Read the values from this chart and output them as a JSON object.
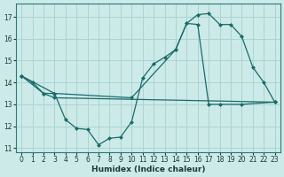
{
  "xlabel": "Humidex (Indice chaleur)",
  "bg_color": "#cceae8",
  "grid_color": "#aad4d2",
  "line_color": "#1a6b6b",
  "xlim": [
    -0.5,
    23.5
  ],
  "ylim": [
    10.8,
    17.6
  ],
  "xticks": [
    0,
    1,
    2,
    3,
    4,
    5,
    6,
    7,
    8,
    9,
    10,
    11,
    12,
    13,
    14,
    15,
    16,
    17,
    18,
    19,
    20,
    21,
    22,
    23
  ],
  "yticks": [
    11,
    12,
    13,
    14,
    15,
    16,
    17
  ],
  "line1_x": [
    0,
    1,
    2,
    3,
    4,
    5,
    6,
    7,
    8,
    9,
    10,
    11,
    12,
    13,
    14,
    15,
    16,
    17,
    18,
    19,
    20,
    21,
    22,
    23
  ],
  "line1_y": [
    14.3,
    14.0,
    13.5,
    13.5,
    12.3,
    11.9,
    11.85,
    11.15,
    11.45,
    11.5,
    12.2,
    14.2,
    14.85,
    15.15,
    15.5,
    16.7,
    17.1,
    17.15,
    16.65,
    16.65,
    16.1,
    14.7,
    14.0,
    13.1
  ],
  "line2_x": [
    0,
    2,
    3,
    23
  ],
  "line2_y": [
    14.3,
    13.5,
    13.3,
    13.1
  ],
  "line3_x": [
    0,
    3,
    10,
    14,
    15,
    16,
    17,
    18,
    20,
    23
  ],
  "line3_y": [
    14.3,
    13.5,
    13.3,
    15.5,
    16.7,
    16.65,
    13.0,
    13.0,
    13.0,
    13.1
  ]
}
